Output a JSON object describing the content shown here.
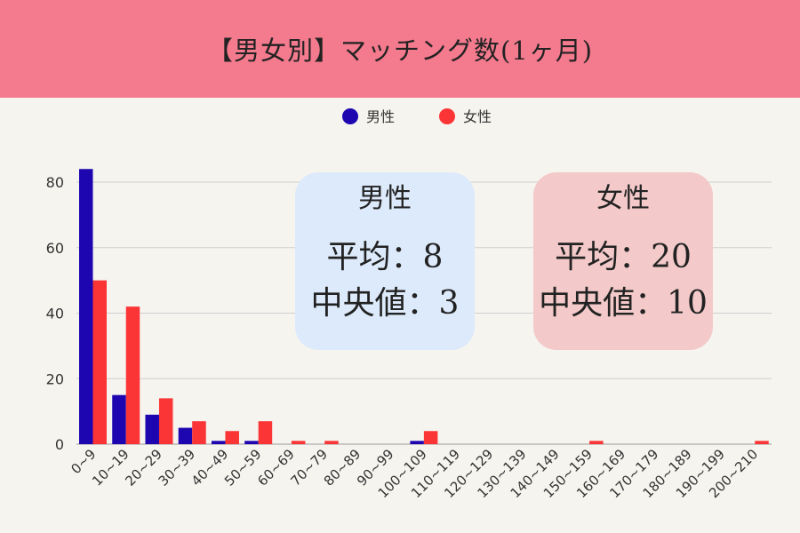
{
  "header": {
    "title": "【男女別】マッチング数(1ヶ月)"
  },
  "chart_data": {
    "type": "bar",
    "title": "【男女別】マッチング数(1ヶ月)",
    "xlabel": "",
    "ylabel": "",
    "ylim": [
      0,
      80
    ],
    "yticks": [
      0,
      20,
      40,
      60,
      80
    ],
    "grid": true,
    "legend_position": "top",
    "categories": [
      "0~9",
      "10~19",
      "20~29",
      "30~39",
      "40~49",
      "50~59",
      "60~69",
      "70~79",
      "80~89",
      "90~99",
      "100~109",
      "110~119",
      "120~129",
      "130~139",
      "140~149",
      "150~159",
      "160~169",
      "170~179",
      "180~189",
      "190~199",
      "200~210"
    ],
    "series": [
      {
        "name": "男性",
        "color": "#1d06b0",
        "values": [
          84,
          15,
          9,
          5,
          1,
          1,
          0,
          0,
          0,
          0,
          1,
          0,
          0,
          0,
          0,
          0,
          0,
          0,
          0,
          0,
          0
        ]
      },
      {
        "name": "女性",
        "color": "#fb3535",
        "values": [
          50,
          42,
          14,
          7,
          4,
          7,
          1,
          1,
          0,
          0,
          4,
          0,
          0,
          0,
          0,
          1,
          0,
          0,
          0,
          0,
          1
        ]
      }
    ]
  },
  "cards": {
    "male": {
      "title": "男性",
      "mean": "平均：8",
      "median": "中央値：3"
    },
    "female": {
      "title": "女性",
      "mean": "平均：20",
      "median": "中央値：10"
    }
  }
}
